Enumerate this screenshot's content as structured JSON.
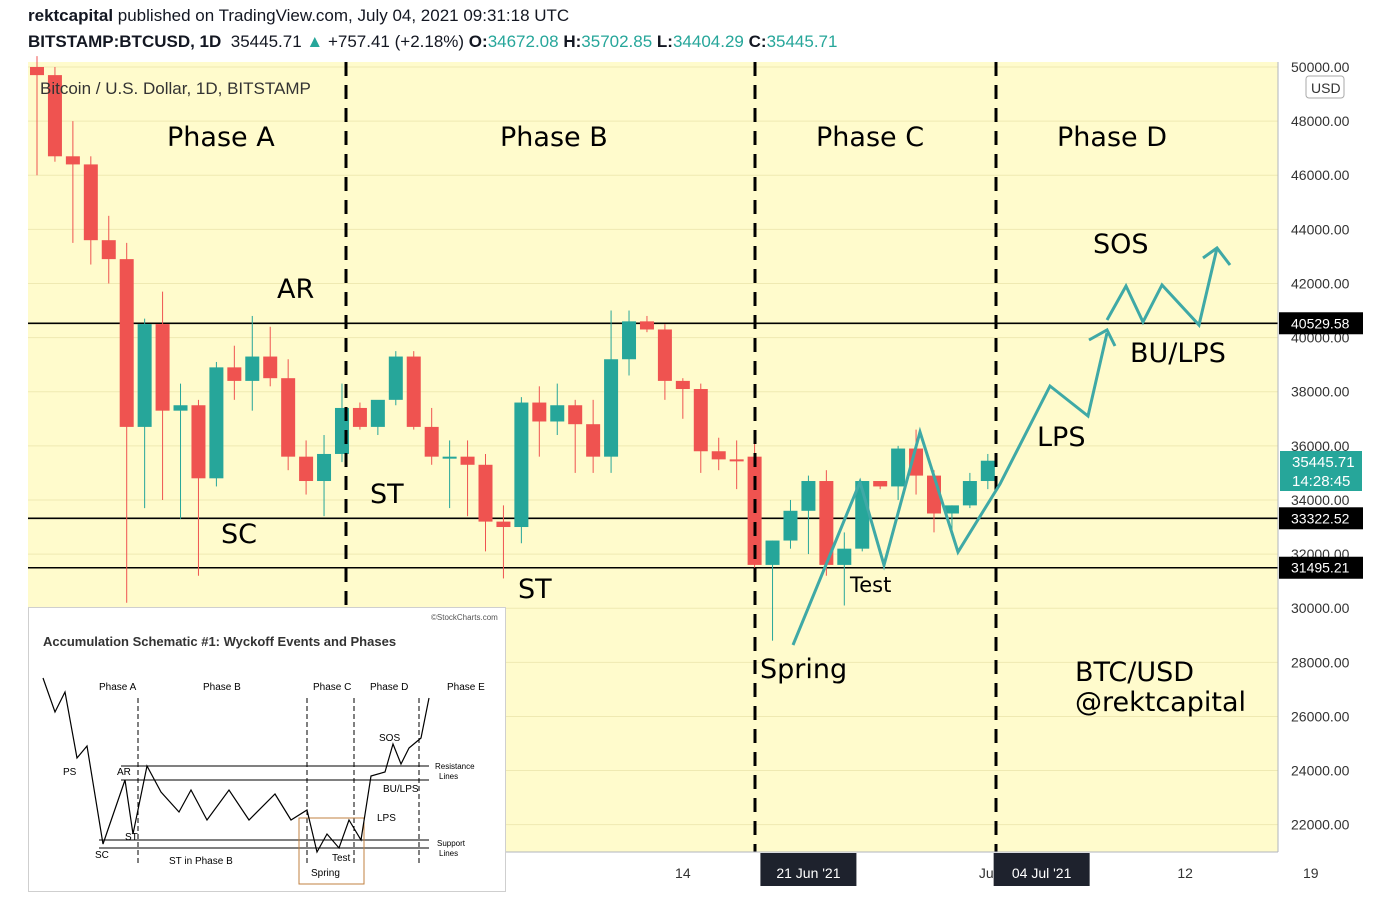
{
  "header": {
    "author": "rektcapital",
    "published": " published on TradingView.com, July 04, 2021 09:31:18 UTC",
    "symbol": "BITSTAMP:BTCUSD, 1D",
    "last": "35445.71",
    "change": "+757.41 (+2.18%)",
    "o_label": "O:",
    "o_value": "34672.08",
    "h_label": "H:",
    "h_value": "35702.85",
    "l_label": "L:",
    "l_value": "34404.29",
    "c_label": "C:",
    "c_value": "35445.71"
  },
  "chart_data": {
    "type": "candlestick",
    "title": "Bitcoin / U.S. Dollar, 1D, BITSTAMP",
    "currency": "USD",
    "ylim": [
      20400,
      50500
    ],
    "y_ticks": [
      "22000.00",
      "24000.00",
      "26000.00",
      "28000.00",
      "30000.00",
      "32000.00",
      "34000.00",
      "36000.00",
      "38000.00",
      "40000.00",
      "42000.00",
      "44000.00",
      "46000.00",
      "48000.00",
      "50000.00"
    ],
    "x_ticks": [
      {
        "label": "14",
        "day": 36
      },
      {
        "label": "21 Jun '21",
        "day": 43
      },
      {
        "label": "Jul",
        "day": 53
      },
      {
        "label": "04 Jul '21",
        "day": 56
      },
      {
        "label": "12",
        "day": 64
      },
      {
        "label": "19",
        "day": 71
      }
    ],
    "candles": [
      [
        50000,
        50400,
        46000,
        49700
      ],
      [
        49700,
        50000,
        46500,
        46700
      ],
      [
        46700,
        48000,
        43500,
        46400
      ],
      [
        46400,
        46700,
        42700,
        43600
      ],
      [
        43600,
        44500,
        42000,
        42900
      ],
      [
        42900,
        43500,
        30200,
        36700
      ],
      [
        36700,
        40700,
        33700,
        40500
      ],
      [
        40500,
        41700,
        34000,
        37300
      ],
      [
        37300,
        38300,
        33300,
        37500
      ],
      [
        37500,
        37700,
        31200,
        34800
      ],
      [
        34800,
        39100,
        34500,
        38900
      ],
      [
        38900,
        39700,
        37700,
        38400
      ],
      [
        38400,
        40800,
        37300,
        39300
      ],
      [
        39300,
        40400,
        38200,
        38500
      ],
      [
        38500,
        39200,
        35100,
        35600
      ],
      [
        35600,
        36200,
        34200,
        34700
      ],
      [
        34700,
        36400,
        33400,
        35700
      ],
      [
        35700,
        38300,
        35400,
        37400
      ],
      [
        37400,
        37600,
        36600,
        36700
      ],
      [
        36700,
        37600,
        36400,
        37700
      ],
      [
        37700,
        39500,
        37500,
        39300
      ],
      [
        39300,
        39500,
        36600,
        36700
      ],
      [
        36700,
        37400,
        35300,
        35600
      ],
      [
        35600,
        36200,
        33700,
        35600
      ],
      [
        35600,
        36200,
        33400,
        35300
      ],
      [
        35300,
        35700,
        32100,
        33200
      ],
      [
        33200,
        33800,
        31100,
        33000
      ],
      [
        33000,
        37800,
        32400,
        37600
      ],
      [
        37600,
        38200,
        35600,
        36900
      ],
      [
        36900,
        38300,
        36400,
        37500
      ],
      [
        37500,
        37700,
        35000,
        36800
      ],
      [
        36800,
        37700,
        35000,
        35600
      ],
      [
        35600,
        41000,
        35000,
        39200
      ],
      [
        39200,
        41000,
        38600,
        40600
      ],
      [
        40600,
        40800,
        40200,
        40300
      ],
      [
        40300,
        40500,
        37700,
        38400
      ],
      [
        38400,
        38500,
        37000,
        38100
      ],
      [
        38100,
        38300,
        35000,
        35800
      ],
      [
        35800,
        36300,
        35100,
        35500
      ],
      [
        35500,
        36200,
        34400,
        35450
      ],
      [
        35600,
        36100,
        31500,
        31600
      ],
      [
        31600,
        32500,
        28800,
        32500
      ],
      [
        32500,
        34000,
        32200,
        33600
      ],
      [
        33600,
        34900,
        32000,
        34700
      ],
      [
        34700,
        35100,
        31200,
        31600
      ],
      [
        31600,
        32800,
        30100,
        32200
      ],
      [
        32200,
        34700,
        32100,
        34700
      ],
      [
        34700,
        34700,
        34400,
        34500
      ],
      [
        34500,
        36000,
        34000,
        35900
      ],
      [
        35900,
        36600,
        34200,
        34900
      ],
      [
        34900,
        35100,
        32800,
        33500
      ],
      [
        33500,
        33800,
        32800,
        33800
      ],
      [
        33800,
        35000,
        33700,
        34700
      ],
      [
        34700,
        35700,
        34400,
        35450
      ]
    ]
  },
  "annotations": {
    "phase_a": "Phase A",
    "phase_b": "Phase B",
    "phase_c": "Phase C",
    "phase_d": "Phase D",
    "ar": "AR",
    "sc": "SC",
    "st1": "ST",
    "st2": "ST",
    "test": "Test",
    "spring": "Spring",
    "lps": "LPS",
    "sos": "SOS",
    "bu_lps": "BU/LPS",
    "watermark1": "BTC/USD",
    "watermark2": "@rektcapital"
  },
  "levels": [
    {
      "price": 40529.58,
      "label": "40529.58"
    },
    {
      "price": 33322.52,
      "label": "33322.52"
    },
    {
      "price": 31495.21,
      "label": "31495.21"
    }
  ],
  "price_tag": {
    "value": "35445.71",
    "countdown": "14:28:45"
  },
  "colors": {
    "bg": "#fffbcc",
    "up": "#26a69a",
    "down": "#ef5350",
    "projection": "#3fa9a6",
    "line": "#000000"
  },
  "inset": {
    "title": "Accumulation Schematic #1: Wyckoff Events and Phases",
    "credit": "©StockCharts.com",
    "phases": [
      "Phase A",
      "Phase B",
      "Phase C",
      "Phase D",
      "Phase E"
    ],
    "labels": {
      "ps": "PS",
      "ar": "AR",
      "st": "ST",
      "sc": "SC",
      "st_b": "ST in Phase B",
      "sos": "SOS",
      "bu_lps": "BU/LPS",
      "lps": "LPS",
      "test": "Test",
      "spring": "Spring",
      "res1": "Resistance",
      "res2": "Lines",
      "sup1": "Support",
      "sup2": "Lines"
    }
  }
}
